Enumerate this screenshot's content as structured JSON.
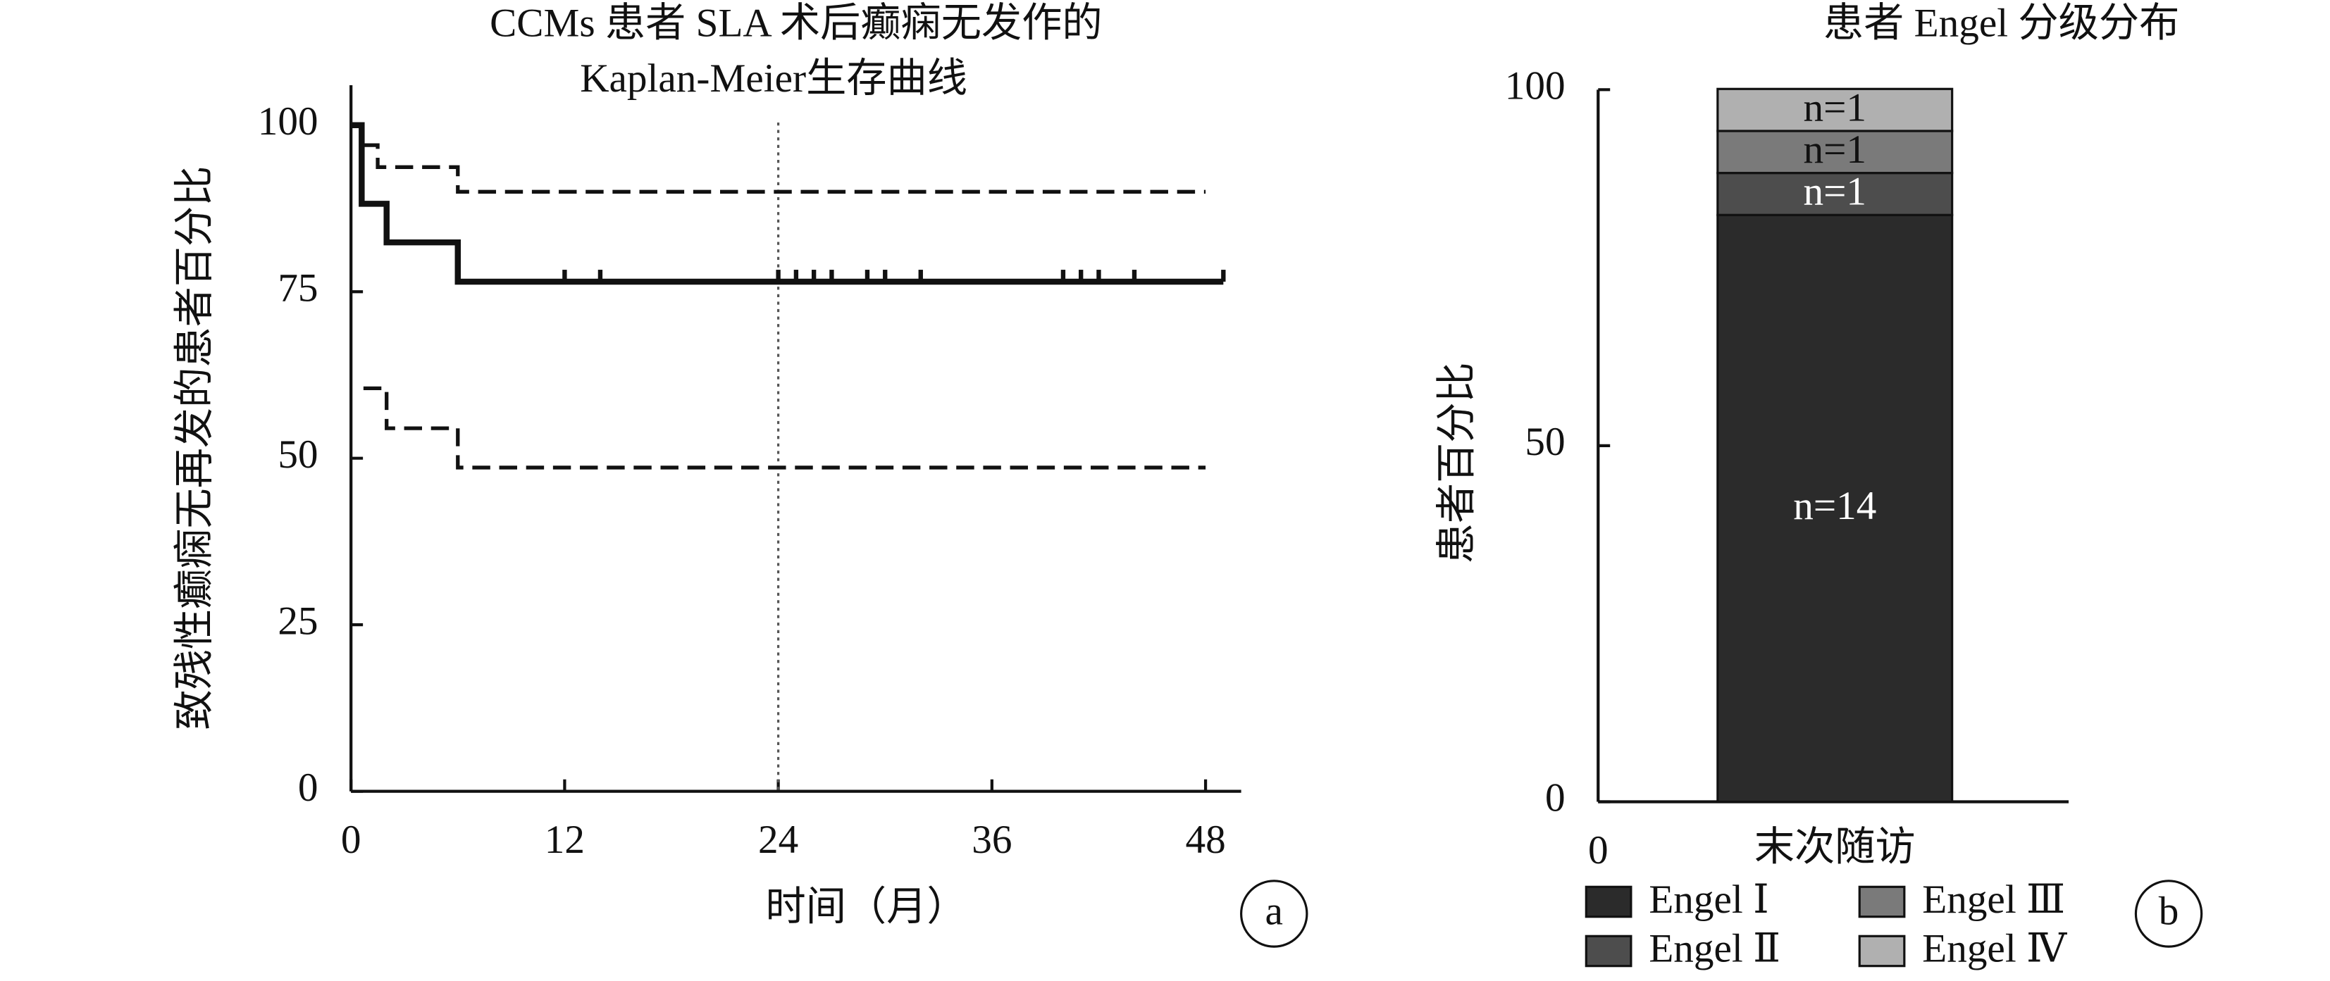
{
  "chart_data": [
    {
      "type": "line",
      "title": [
        "CCMs 患者 SLA 术后癫痫无发作的",
        "Kaplan-Meier生存曲线"
      ],
      "xlabel": "时间（月）",
      "ylabel": "致残性癫痫无再发的患者百分比",
      "panel_label": "a",
      "step": true,
      "xlim": [
        0,
        50
      ],
      "xticks": [
        0,
        12,
        24,
        36,
        48
      ],
      "ylim": [
        0,
        106
      ],
      "yticks": [
        0,
        25,
        50,
        75,
        100
      ],
      "vline": 24,
      "series": [
        {
          "color": "#111111",
          "dash": false,
          "x": [
            0,
            0.6,
            2,
            6,
            49
          ],
          "values": [
            100,
            88.2,
            82.4,
            76.5,
            76.5
          ]
        },
        {
          "color": "#111111",
          "dash": true,
          "x": [
            0.7,
            1.5,
            6,
            48
          ],
          "values": [
            97,
            93.7,
            90,
            90
          ]
        },
        {
          "color": "#111111",
          "dash": true,
          "x": [
            0.7,
            2,
            6,
            48
          ],
          "values": [
            60.5,
            54.5,
            48.6,
            48.6
          ]
        }
      ],
      "censored": {
        "x": [
          12,
          14,
          24,
          25,
          26,
          27,
          29,
          30,
          32,
          40,
          41,
          42,
          44,
          49
        ],
        "values": [
          76.5,
          76.5,
          76.5,
          76.5,
          76.5,
          76.5,
          76.5,
          76.5,
          76.5,
          76.5,
          76.5,
          76.5,
          76.5,
          76.5
        ]
      }
    },
    {
      "type": "stacked_bar",
      "title": "患者 Engel 分级分布",
      "ylabel": "患者百分比",
      "panel_label": "b",
      "x_origin_label": "0",
      "categories": [
        "末次随访"
      ],
      "ylim": [
        0,
        100
      ],
      "yticks": [
        0,
        50,
        100
      ],
      "series": [
        {
          "name": "Engel Ⅰ",
          "color": "#2b2b2b",
          "values": [
            82.4
          ],
          "count_label": "n=14"
        },
        {
          "name": "Engel Ⅱ",
          "color": "#4d4d4d",
          "values": [
            5.9
          ],
          "count_label": "n=1"
        },
        {
          "name": "Engel Ⅲ",
          "color": "#7a7a7a",
          "values": [
            5.9
          ],
          "count_label": "n=1"
        },
        {
          "name": "Engel Ⅳ",
          "color": "#b0b0b0",
          "values": [
            5.9
          ],
          "count_label": "n=1"
        }
      ]
    }
  ]
}
